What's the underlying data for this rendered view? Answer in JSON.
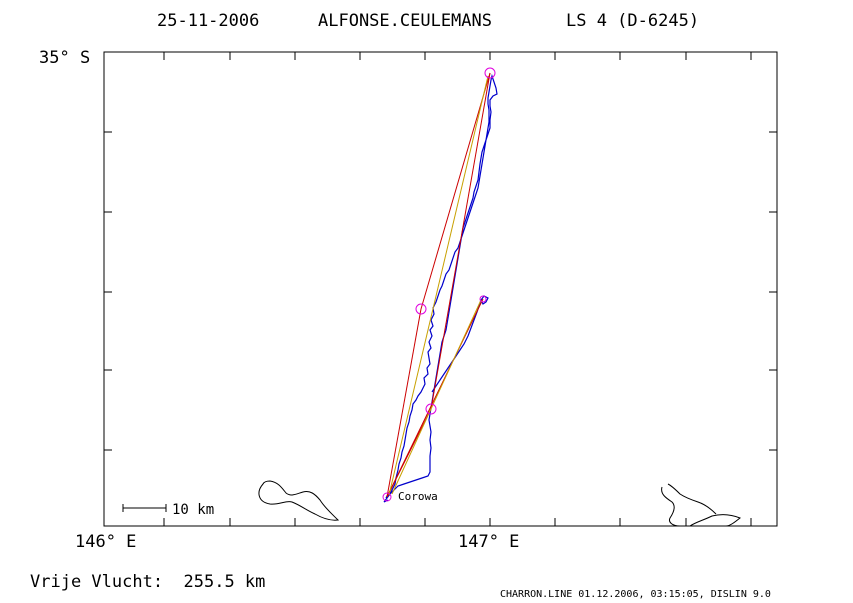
{
  "title": {
    "date": "25-11-2006",
    "pilot": "ALFONSE.CEULEMANS",
    "class": "LS 4 (D-6245)"
  },
  "axes": {
    "lat_label": "35° S",
    "lon_labels": [
      "146° E",
      "147° E"
    ]
  },
  "scale_bar": {
    "label": "10 km"
  },
  "place": {
    "name": "Corowa"
  },
  "footer": {
    "free_flight": "Vrije Vlucht:  255.5 km",
    "credit": "CHARRON.LINE 01.12.2006, 03:15:05, DISLIN 9.0"
  },
  "colors": {
    "track": "#0000cc",
    "task_line": "#cc0000",
    "optimized_line": "#c8a000",
    "turnpoint": "#e000e0",
    "coast": "#000000",
    "frame": "#000000"
  }
}
